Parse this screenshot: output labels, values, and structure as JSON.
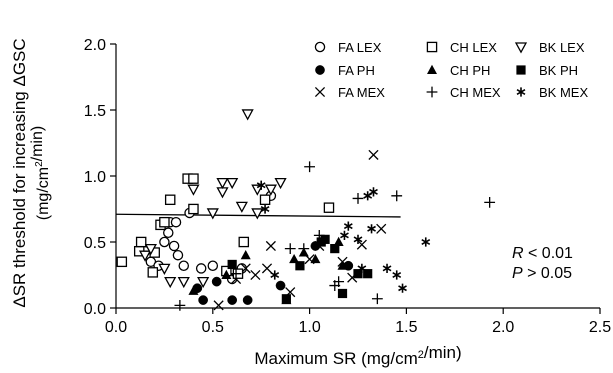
{
  "chart_data": {
    "type": "scatter",
    "xlabel": "Maximum SR (mg/cm²/min)",
    "ylabel": "ΔSR threshold for increasing ΔGSC",
    "ylabel_units": "(mg/cm²/min)",
    "xlim": [
      0,
      2.5
    ],
    "ylim": [
      0,
      2.0
    ],
    "x_ticks": [
      "0.0",
      "0.5",
      "1.0",
      "1.5",
      "2.0",
      "2.5"
    ],
    "y_ticks": [
      "0.0",
      "0.5",
      "1.0",
      "1.5",
      "2.0"
    ],
    "grid": false,
    "legend_position": "top-right",
    "annotation": {
      "r_letter": "R",
      "r_text": " < 0.01",
      "p_letter": "P",
      "p_text": " > 0.05"
    },
    "regression_line": {
      "x": [
        0.0,
        1.47
      ],
      "y": [
        0.71,
        0.69
      ]
    },
    "series": [
      {
        "name": "FA LEX",
        "marker": "circle-open",
        "points": [
          [
            0.15,
            0.43
          ],
          [
            0.18,
            0.35
          ],
          [
            0.22,
            0.32
          ],
          [
            0.25,
            0.5
          ],
          [
            0.27,
            0.57
          ],
          [
            0.28,
            0.65
          ],
          [
            0.3,
            0.47
          ],
          [
            0.31,
            0.65
          ],
          [
            0.32,
            0.4
          ],
          [
            0.35,
            0.32
          ],
          [
            0.38,
            0.72
          ],
          [
            0.44,
            0.3
          ],
          [
            0.5,
            0.32
          ],
          [
            0.6,
            0.22
          ],
          [
            0.65,
            0.3
          ],
          [
            0.8,
            0.85
          ]
        ]
      },
      {
        "name": "FA PH",
        "marker": "circle-filled",
        "points": [
          [
            0.42,
            0.15
          ],
          [
            0.45,
            0.06
          ],
          [
            0.52,
            0.2
          ],
          [
            0.6,
            0.06
          ],
          [
            0.68,
            0.06
          ],
          [
            0.85,
            0.17
          ],
          [
            1.03,
            0.47
          ],
          [
            1.2,
            0.32
          ]
        ]
      },
      {
        "name": "FA MEX",
        "marker": "x",
        "points": [
          [
            0.53,
            0.02
          ],
          [
            0.62,
            0.22
          ],
          [
            0.67,
            0.3
          ],
          [
            0.72,
            0.25
          ],
          [
            0.78,
            0.3
          ],
          [
            0.8,
            0.47
          ],
          [
            0.9,
            0.12
          ],
          [
            1.0,
            0.37
          ],
          [
            1.05,
            0.47
          ],
          [
            1.17,
            0.35
          ],
          [
            1.22,
            0.23
          ],
          [
            1.27,
            0.48
          ],
          [
            1.33,
            1.16
          ],
          [
            1.37,
            0.6
          ]
        ]
      },
      {
        "name": "CH LEX",
        "marker": "square-open",
        "points": [
          [
            0.03,
            0.35
          ],
          [
            0.12,
            0.43
          ],
          [
            0.13,
            0.5
          ],
          [
            0.19,
            0.27
          ],
          [
            0.2,
            0.42
          ],
          [
            0.23,
            0.63
          ],
          [
            0.25,
            0.65
          ],
          [
            0.28,
            0.82
          ],
          [
            0.37,
            0.98
          ],
          [
            0.4,
            0.98
          ],
          [
            0.4,
            0.75
          ],
          [
            0.57,
            0.28
          ],
          [
            0.63,
            0.26
          ],
          [
            0.66,
            0.5
          ],
          [
            0.77,
            0.82
          ],
          [
            1.1,
            0.76
          ]
        ]
      },
      {
        "name": "CH PH",
        "marker": "triangle-filled",
        "points": [
          [
            0.4,
            0.13
          ],
          [
            0.57,
            0.25
          ],
          [
            0.67,
            0.4
          ],
          [
            0.88,
            0.06
          ],
          [
            0.92,
            0.37
          ],
          [
            0.97,
            0.42
          ],
          [
            1.03,
            0.37
          ],
          [
            1.15,
            0.5
          ],
          [
            1.17,
            0.32
          ]
        ]
      },
      {
        "name": "CH MEX",
        "marker": "plus",
        "points": [
          [
            0.33,
            0.02
          ],
          [
            0.62,
            0.26
          ],
          [
            0.9,
            0.45
          ],
          [
            0.97,
            0.45
          ],
          [
            1.0,
            1.07
          ],
          [
            1.05,
            0.55
          ],
          [
            1.13,
            0.17
          ],
          [
            1.15,
            0.2
          ],
          [
            1.25,
            0.83
          ],
          [
            1.35,
            0.07
          ],
          [
            1.45,
            0.85
          ],
          [
            1.93,
            0.8
          ]
        ]
      },
      {
        "name": "BK LEX",
        "marker": "triangle-down-open",
        "points": [
          [
            0.15,
            0.4
          ],
          [
            0.18,
            0.45
          ],
          [
            0.25,
            0.3
          ],
          [
            0.28,
            0.2
          ],
          [
            0.35,
            0.2
          ],
          [
            0.4,
            0.9
          ],
          [
            0.45,
            0.2
          ],
          [
            0.5,
            0.72
          ],
          [
            0.55,
            0.88
          ],
          [
            0.55,
            0.95
          ],
          [
            0.6,
            0.95
          ],
          [
            0.65,
            0.77
          ],
          [
            0.68,
            1.47
          ],
          [
            0.73,
            0.72
          ],
          [
            0.73,
            0.9
          ],
          [
            0.8,
            0.9
          ],
          [
            0.85,
            0.95
          ]
        ]
      },
      {
        "name": "BK PH",
        "marker": "square-filled",
        "points": [
          [
            0.6,
            0.33
          ],
          [
            0.88,
            0.07
          ],
          [
            0.95,
            0.32
          ],
          [
            1.06,
            0.5
          ],
          [
            1.08,
            0.52
          ],
          [
            1.13,
            0.45
          ],
          [
            1.17,
            0.11
          ],
          [
            1.25,
            0.26
          ],
          [
            1.3,
            0.26
          ]
        ]
      },
      {
        "name": "BK MEX",
        "marker": "asterisk",
        "points": [
          [
            0.75,
            0.93
          ],
          [
            0.77,
            0.75
          ],
          [
            0.82,
            0.25
          ],
          [
            1.18,
            0.55
          ],
          [
            1.25,
            0.52
          ],
          [
            1.27,
            0.3
          ],
          [
            1.3,
            0.85
          ],
          [
            1.33,
            0.88
          ],
          [
            1.4,
            0.3
          ],
          [
            1.45,
            0.25
          ],
          [
            1.48,
            0.15
          ],
          [
            1.6,
            0.5
          ],
          [
            1.32,
            0.6
          ],
          [
            1.2,
            0.62
          ]
        ]
      }
    ]
  }
}
